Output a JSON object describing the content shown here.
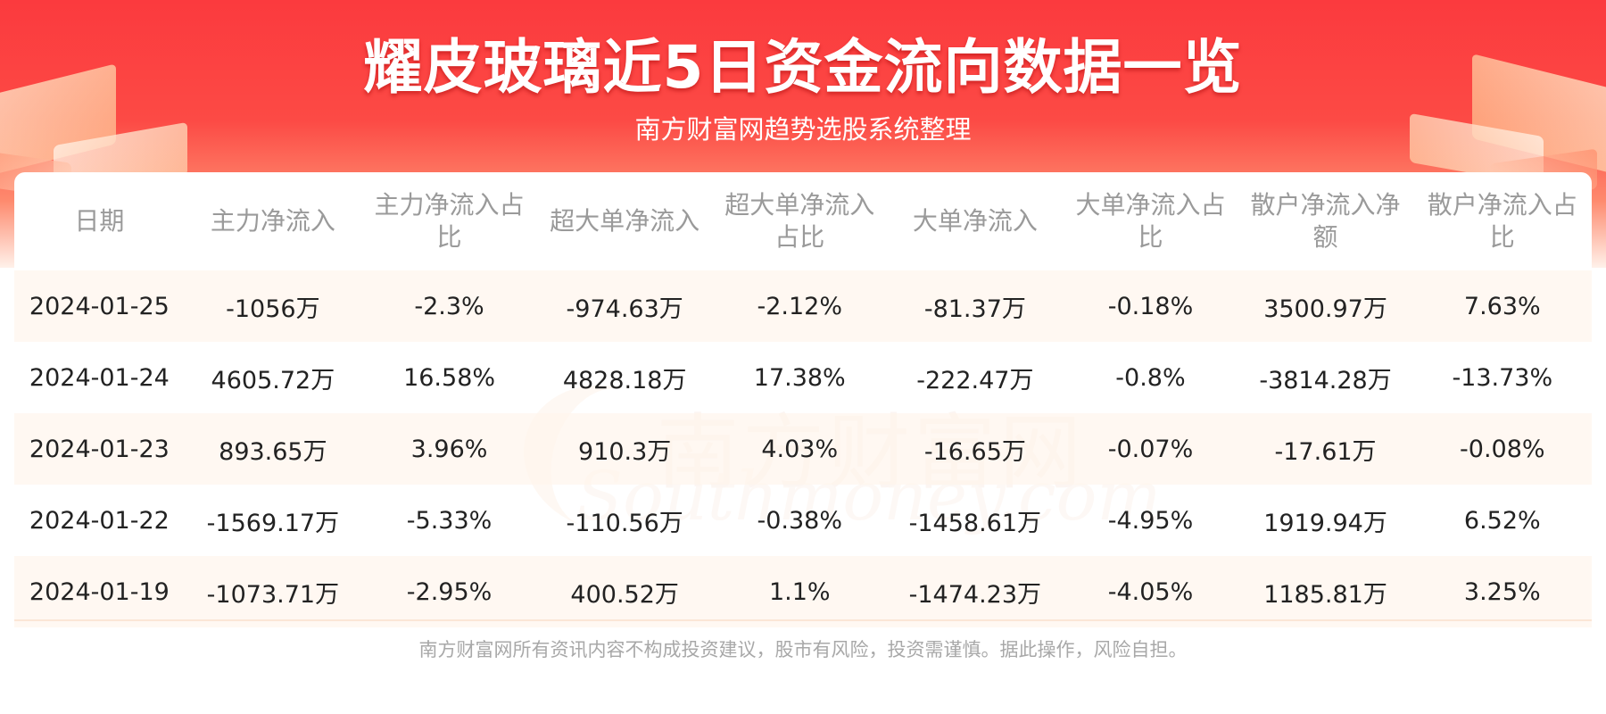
{
  "header": {
    "title": "耀皮玻璃近5日资金流向数据一览",
    "subtitle": "南方财富网趋势选股系统整理"
  },
  "watermark": {
    "cn": "南方财富网",
    "en": "Southmoney.com"
  },
  "table": {
    "columns": [
      "日期",
      "主力净流入",
      "主力净流入占比",
      "超大单净流入",
      "超大单净流入占比",
      "大单净流入",
      "大单净流入占比",
      "散户净流入净额",
      "散户净流入占比"
    ],
    "rows": [
      [
        "2024-01-25",
        "-1056万",
        "-2.3%",
        "-974.63万",
        "-2.12%",
        "-81.37万",
        "-0.18%",
        "3500.97万",
        "7.63%"
      ],
      [
        "2024-01-24",
        "4605.72万",
        "16.58%",
        "4828.18万",
        "17.38%",
        "-222.47万",
        "-0.8%",
        "-3814.28万",
        "-13.73%"
      ],
      [
        "2024-01-23",
        "893.65万",
        "3.96%",
        "910.3万",
        "4.03%",
        "-16.65万",
        "-0.07%",
        "-17.61万",
        "-0.08%"
      ],
      [
        "2024-01-22",
        "-1569.17万",
        "-5.33%",
        "-110.56万",
        "-0.38%",
        "-1458.61万",
        "-4.95%",
        "1919.94万",
        "6.52%"
      ],
      [
        "2024-01-19",
        "-1073.71万",
        "-2.95%",
        "400.52万",
        "1.1%",
        "-1474.23万",
        "-4.05%",
        "1185.81万",
        "3.25%"
      ]
    ]
  },
  "footer": {
    "disclaimer": "南方财富网所有资讯内容不构成投资建议，股市有风险，投资需谨慎。据此操作，风险自担。"
  },
  "colors": {
    "header_red": "#fb3a3e",
    "header_text": "#ffffff",
    "column_header_text": "#9a9a9a",
    "cell_text": "#222222",
    "stripe": "#fff7f0"
  }
}
